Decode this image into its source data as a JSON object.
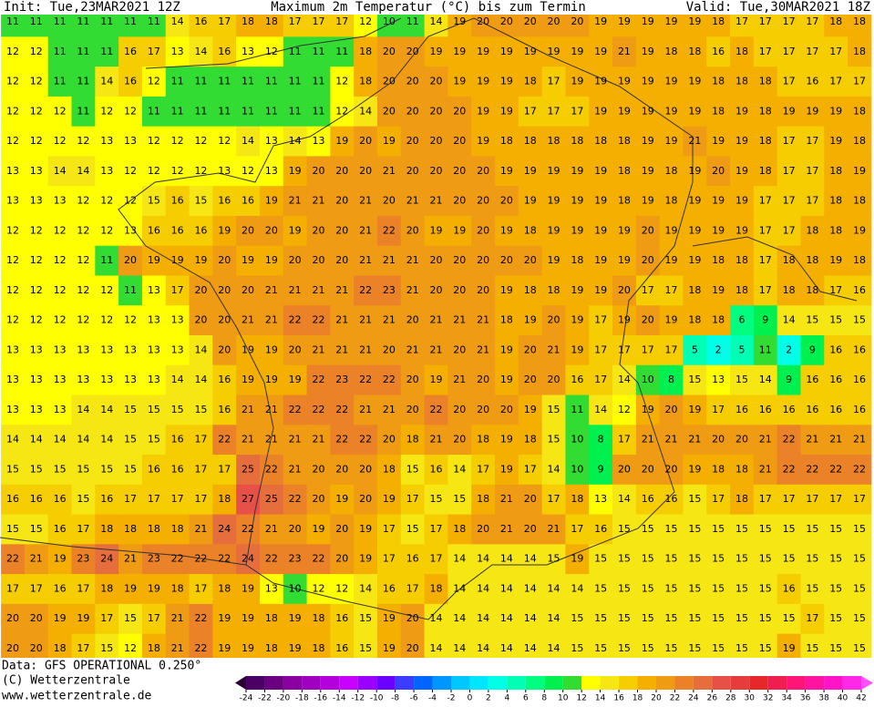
{
  "header": {
    "init": "Init: Tue,23MAR2021 12Z",
    "title": "Maximum 2m Temperatur (°C) bis zum Termin",
    "valid": "Valid: Tue,30MAR2021 18Z"
  },
  "footer": {
    "data": "Data: GFS OPERATIONAL 0.250°",
    "copyright": "(C) Wetterzentrale",
    "url": "www.wetterzentrale.de"
  },
  "legend": {
    "ticks": [
      -24,
      -22,
      -20,
      -18,
      -16,
      -14,
      -12,
      -10,
      -8,
      -6,
      -4,
      -2,
      0,
      2,
      4,
      6,
      8,
      10,
      12,
      14,
      16,
      18,
      20,
      22,
      24,
      26,
      28,
      30,
      32,
      34,
      36,
      38,
      40,
      42
    ],
    "colors": [
      "#2a0033",
      "#4b0066",
      "#6a0080",
      "#8a00a0",
      "#a000c0",
      "#b400dc",
      "#c800ff",
      "#9a00ff",
      "#6a00ff",
      "#3c3cff",
      "#0064ff",
      "#0096ff",
      "#00c8ff",
      "#00e6ff",
      "#00ffe6",
      "#00ffb4",
      "#00ff80",
      "#00f050",
      "#32dc32",
      "#ffff00",
      "#f5e614",
      "#f5cd00",
      "#f5af00",
      "#f09b14",
      "#eb8228",
      "#e66e3c",
      "#e65046",
      "#e63c3c",
      "#e62828",
      "#f01e50",
      "#ff1478",
      "#ff14a0",
      "#ff14c8",
      "#ff28e6",
      "#ff50ff"
    ]
  },
  "grid": {
    "rows": [
      [
        11,
        11,
        11,
        11,
        11,
        11,
        11,
        14,
        16,
        17,
        18,
        18,
        17,
        17,
        17,
        12,
        10,
        11,
        14,
        19,
        20,
        20,
        20,
        20,
        20,
        19,
        19,
        19,
        19,
        19,
        18,
        17,
        17,
        17,
        17,
        18,
        18
      ],
      [
        12,
        12,
        11,
        11,
        11,
        16,
        17,
        13,
        14,
        16,
        13,
        12,
        11,
        11,
        11,
        18,
        20,
        20,
        19,
        19,
        19,
        19,
        19,
        19,
        19,
        19,
        21,
        19,
        18,
        18,
        16,
        18,
        17,
        17,
        17,
        17,
        18
      ],
      [
        12,
        12,
        11,
        11,
        14,
        16,
        12,
        11,
        11,
        11,
        11,
        11,
        11,
        11,
        12,
        18,
        20,
        20,
        20,
        19,
        19,
        19,
        18,
        17,
        19,
        19,
        19,
        19,
        19,
        19,
        18,
        18,
        18,
        17,
        16,
        17,
        17
      ],
      [
        12,
        12,
        12,
        11,
        12,
        12,
        11,
        11,
        11,
        11,
        11,
        11,
        11,
        11,
        12,
        14,
        20,
        20,
        20,
        20,
        19,
        19,
        17,
        17,
        17,
        19,
        19,
        19,
        19,
        19,
        18,
        19,
        18,
        19,
        19,
        19,
        18
      ],
      [
        12,
        12,
        12,
        12,
        13,
        13,
        12,
        12,
        12,
        12,
        14,
        13,
        14,
        13,
        19,
        20,
        19,
        20,
        20,
        20,
        19,
        18,
        18,
        18,
        18,
        18,
        18,
        19,
        19,
        21,
        19,
        19,
        18,
        17,
        17,
        19,
        18
      ],
      [
        13,
        13,
        14,
        14,
        13,
        12,
        12,
        12,
        12,
        13,
        12,
        13,
        19,
        20,
        20,
        20,
        21,
        20,
        20,
        20,
        20,
        19,
        19,
        19,
        19,
        19,
        18,
        19,
        18,
        19,
        20,
        19,
        18,
        17,
        17,
        18,
        19
      ],
      [
        13,
        13,
        13,
        12,
        12,
        12,
        15,
        16,
        15,
        16,
        16,
        19,
        21,
        21,
        20,
        21,
        20,
        21,
        21,
        20,
        20,
        20,
        19,
        19,
        19,
        19,
        18,
        19,
        18,
        19,
        19,
        19,
        17,
        17,
        17,
        18,
        18
      ],
      [
        12,
        12,
        12,
        12,
        12,
        13,
        16,
        16,
        16,
        19,
        20,
        20,
        19,
        20,
        20,
        21,
        22,
        20,
        19,
        19,
        20,
        19,
        18,
        19,
        19,
        19,
        19,
        20,
        19,
        19,
        19,
        19,
        17,
        17,
        18,
        18,
        19
      ],
      [
        12,
        12,
        12,
        12,
        11,
        20,
        19,
        19,
        19,
        20,
        19,
        19,
        20,
        20,
        20,
        21,
        21,
        21,
        20,
        20,
        20,
        20,
        20,
        19,
        18,
        19,
        19,
        20,
        19,
        19,
        18,
        18,
        17,
        18,
        18,
        19,
        18
      ],
      [
        12,
        12,
        12,
        12,
        12,
        11,
        13,
        17,
        20,
        20,
        20,
        21,
        21,
        21,
        21,
        22,
        23,
        21,
        20,
        20,
        20,
        19,
        18,
        18,
        19,
        19,
        20,
        17,
        17,
        18,
        19,
        18,
        17,
        18,
        18,
        17,
        16
      ],
      [
        12,
        12,
        12,
        12,
        12,
        12,
        13,
        13,
        20,
        20,
        21,
        21,
        22,
        22,
        21,
        21,
        21,
        20,
        21,
        21,
        21,
        18,
        19,
        20,
        19,
        17,
        19,
        20,
        19,
        18,
        18,
        6,
        9,
        14,
        15,
        15,
        15
      ],
      [
        13,
        13,
        13,
        13,
        13,
        13,
        13,
        13,
        14,
        20,
        19,
        19,
        20,
        21,
        21,
        21,
        20,
        21,
        21,
        20,
        21,
        19,
        20,
        21,
        19,
        17,
        17,
        17,
        17,
        5,
        2,
        5,
        11,
        2,
        9,
        16,
        16
      ],
      [
        13,
        13,
        13,
        13,
        13,
        13,
        13,
        14,
        14,
        16,
        19,
        19,
        19,
        22,
        23,
        22,
        22,
        20,
        19,
        21,
        20,
        19,
        20,
        20,
        16,
        17,
        14,
        10,
        8,
        15,
        13,
        15,
        14,
        9,
        16,
        16,
        16
      ],
      [
        13,
        13,
        13,
        14,
        14,
        15,
        15,
        15,
        15,
        16,
        21,
        21,
        22,
        22,
        22,
        21,
        21,
        20,
        22,
        20,
        20,
        20,
        19,
        15,
        11,
        14,
        12,
        19,
        20,
        19,
        17,
        16,
        16,
        16,
        16,
        16,
        16
      ],
      [
        14,
        14,
        14,
        14,
        14,
        15,
        15,
        16,
        17,
        22,
        21,
        21,
        21,
        21,
        22,
        22,
        20,
        18,
        21,
        20,
        18,
        19,
        18,
        15,
        10,
        8,
        17,
        21,
        21,
        21,
        20,
        20,
        21,
        22,
        21,
        21,
        21
      ],
      [
        15,
        15,
        15,
        15,
        15,
        15,
        16,
        16,
        17,
        17,
        25,
        22,
        21,
        20,
        20,
        20,
        18,
        15,
        16,
        14,
        17,
        19,
        17,
        14,
        10,
        9,
        20,
        20,
        20,
        19,
        18,
        18,
        21,
        22,
        22,
        22,
        22
      ],
      [
        16,
        16,
        16,
        15,
        16,
        17,
        17,
        17,
        17,
        18,
        27,
        25,
        22,
        20,
        19,
        20,
        19,
        17,
        15,
        15,
        18,
        21,
        20,
        17,
        18,
        13,
        14,
        16,
        16,
        15,
        17,
        18,
        17,
        17,
        17,
        17,
        17
      ],
      [
        15,
        15,
        16,
        17,
        18,
        18,
        18,
        18,
        21,
        24,
        22,
        21,
        20,
        19,
        20,
        19,
        17,
        15,
        17,
        18,
        20,
        21,
        20,
        21,
        17,
        16,
        15,
        15,
        15,
        15,
        15,
        15,
        15,
        15,
        15,
        15,
        15
      ],
      [
        22,
        21,
        19,
        23,
        24,
        21,
        23,
        22,
        22,
        22,
        24,
        22,
        23,
        22,
        20,
        19,
        17,
        16,
        17,
        14,
        14,
        14,
        14,
        15,
        19,
        15,
        15,
        15,
        15,
        15,
        15,
        15,
        15,
        15,
        15,
        15,
        15
      ],
      [
        17,
        17,
        16,
        17,
        18,
        19,
        19,
        18,
        17,
        18,
        19,
        13,
        10,
        12,
        12,
        14,
        16,
        17,
        18,
        14,
        14,
        14,
        14,
        14,
        14,
        15,
        15,
        15,
        15,
        15,
        15,
        15,
        15,
        16,
        15,
        15,
        15
      ],
      [
        20,
        20,
        19,
        19,
        17,
        15,
        17,
        21,
        22,
        19,
        19,
        18,
        19,
        18,
        16,
        15,
        19,
        20,
        14,
        14,
        14,
        14,
        14,
        14,
        15,
        15,
        15,
        15,
        15,
        15,
        15,
        15,
        15,
        15,
        17,
        15,
        15
      ],
      [
        20,
        20,
        18,
        17,
        15,
        12,
        18,
        21,
        22,
        19,
        19,
        18,
        19,
        18,
        16,
        15,
        19,
        20,
        14,
        14,
        14,
        14,
        14,
        14,
        15,
        15,
        15,
        15,
        15,
        15,
        15,
        15,
        15,
        19,
        15,
        15,
        15
      ]
    ]
  }
}
